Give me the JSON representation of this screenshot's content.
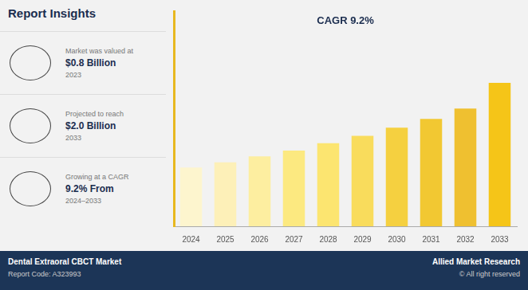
{
  "chart_data": {
    "type": "bar",
    "title": "Report Insights",
    "categories": [
      "2024",
      "2025",
      "2026",
      "2027",
      "2028",
      "2029",
      "2030",
      "2031",
      "2032",
      "2033"
    ],
    "values": [
      0.8,
      0.87,
      0.95,
      1.03,
      1.13,
      1.23,
      1.34,
      1.46,
      1.6,
      1.95
    ],
    "colors": [
      "#FDF5CE",
      "#FDF0B8",
      "#FDEEA0",
      "#FCE980",
      "#FCE570",
      "#F9DC5C",
      "#F5D040",
      "#F2C832",
      "#EFC030",
      "#F5C518"
    ],
    "ylim": [
      0,
      2.925
    ],
    "grid": false,
    "tick_labels": "x",
    "annotations": [
      "CAGR 9.2%",
      "Market was valued at",
      "$0.8 Billion",
      "2023",
      "Projected to reach",
      "$2.0 Billion",
      "2033",
      "Growing at a CAGR",
      "9.2% From",
      "2024–2033",
      "Dental Extraoral CBCT Market",
      "Report Code: A323993",
      "Allied Market Research",
      "© All right reserved"
    ]
  }
}
